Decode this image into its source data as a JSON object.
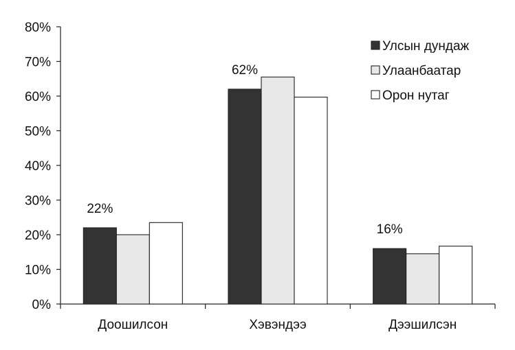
{
  "chart_data": {
    "type": "bar",
    "title": "",
    "xlabel": "",
    "ylabel": "",
    "ylim": [
      0,
      80
    ],
    "y_ticks": [
      "0%",
      "10%",
      "20%",
      "30%",
      "40%",
      "50%",
      "60%",
      "70%",
      "80%"
    ],
    "y_tick_values": [
      0,
      10,
      20,
      30,
      40,
      50,
      60,
      70,
      80
    ],
    "categories": [
      "Доошилсон",
      "Хэвэндээ",
      "Дээшилсэн"
    ],
    "series": [
      {
        "name": "Улсын дундаж",
        "values": [
          22,
          62,
          16
        ],
        "color": "#333333"
      },
      {
        "name": "Улаанбаатар",
        "values": [
          20,
          65.5,
          14.5
        ],
        "color": "#e8e8e8"
      },
      {
        "name": "Орон нутаг",
        "values": [
          23.5,
          59.7,
          16.7
        ],
        "color": "#ffffff"
      }
    ],
    "data_labels": [
      "22%",
      "62%",
      "16%"
    ],
    "legend_position": "top-right",
    "grid": false
  }
}
